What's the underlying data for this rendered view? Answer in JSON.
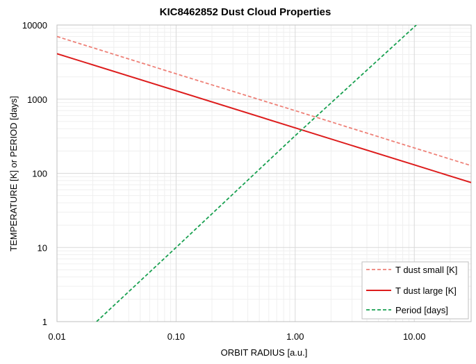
{
  "chart_data": {
    "type": "line",
    "title": "KIC8462852 Dust Cloud Properties",
    "xlabel": "ORBIT RADIUS [a.u.]",
    "ylabel": "TEMPERATURE [K] or PERIOD [days]",
    "x_scale": "log",
    "y_scale": "log",
    "xlim": [
      0.01,
      30
    ],
    "ylim": [
      1,
      10000
    ],
    "x_ticks": [
      "0.01",
      "0.10",
      "1.00",
      "10.00"
    ],
    "y_ticks": [
      "1",
      "10",
      "100",
      "1000",
      "10000"
    ],
    "grid": true,
    "legend_position": "bottom-right",
    "series": [
      {
        "name": "T dust small [K]",
        "color": "#ee8077",
        "style": "dashed",
        "x": [
          0.01,
          0.1,
          1,
          10,
          30
        ],
        "y": [
          7000,
          2200,
          700,
          220,
          127
        ]
      },
      {
        "name": "T dust large [K]",
        "color": "#dd1c1c",
        "style": "solid",
        "x": [
          0.01,
          0.1,
          1,
          10,
          30
        ],
        "y": [
          4100,
          1300,
          410,
          130,
          75
        ]
      },
      {
        "name": "Period [days]",
        "color": "#18a050",
        "style": "dashed",
        "x": [
          0.0215,
          0.1,
          1,
          10.4
        ],
        "y": [
          1,
          10,
          322,
          10000
        ]
      }
    ]
  },
  "colors": {
    "grid_major": "#d9d9d9",
    "grid_minor": "#efefef",
    "plot_border": "#bfbfbf",
    "legend_border": "#bfbfbf"
  }
}
